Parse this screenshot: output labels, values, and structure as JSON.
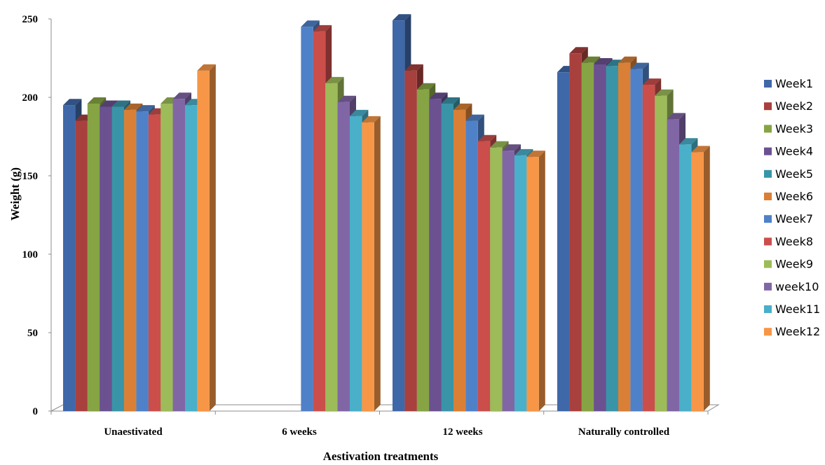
{
  "chart_data": {
    "type": "bar",
    "title": "",
    "xlabel": "Aestivation treatments",
    "ylabel": "Weight (g)",
    "ylim": [
      0,
      250
    ],
    "yticks": [
      0,
      50,
      100,
      150,
      200,
      250
    ],
    "grid": false,
    "legend_position": "right",
    "categories": [
      "Unaestivated",
      "6 weeks",
      "12 weeks",
      "Naturally controlled"
    ],
    "series": [
      {
        "name": "Week1",
        "color": "#3F68A8",
        "values": [
          195,
          0,
          249,
          216
        ]
      },
      {
        "name": "Week2",
        "color": "#A8403E",
        "values": [
          185,
          0,
          217,
          228
        ]
      },
      {
        "name": "Week3",
        "color": "#86A444",
        "values": [
          196,
          0,
          205,
          222
        ]
      },
      {
        "name": "Week4",
        "color": "#6B5190",
        "values": [
          194,
          0,
          199,
          221
        ]
      },
      {
        "name": "Week5",
        "color": "#3A94A8",
        "values": [
          194,
          0,
          196,
          220
        ]
      },
      {
        "name": "Week6",
        "color": "#D98036",
        "values": [
          192,
          0,
          192,
          222
        ]
      },
      {
        "name": "Week7",
        "color": "#4F81C8",
        "values": [
          191,
          245,
          185,
          218
        ]
      },
      {
        "name": "Week8",
        "color": "#CB4E4B",
        "values": [
          189,
          242,
          172,
          208
        ]
      },
      {
        "name": "Week9",
        "color": "#9DBB59",
        "values": [
          196,
          209,
          168,
          201
        ]
      },
      {
        "name": "week10",
        "color": "#8166A6",
        "values": [
          199,
          197,
          166,
          186
        ]
      },
      {
        "name": "Week11",
        "color": "#4AAFC9",
        "values": [
          195,
          188,
          163,
          170
        ]
      },
      {
        "name": "Week12",
        "color": "#F79646",
        "values": [
          217,
          184,
          162,
          165
        ]
      }
    ]
  }
}
